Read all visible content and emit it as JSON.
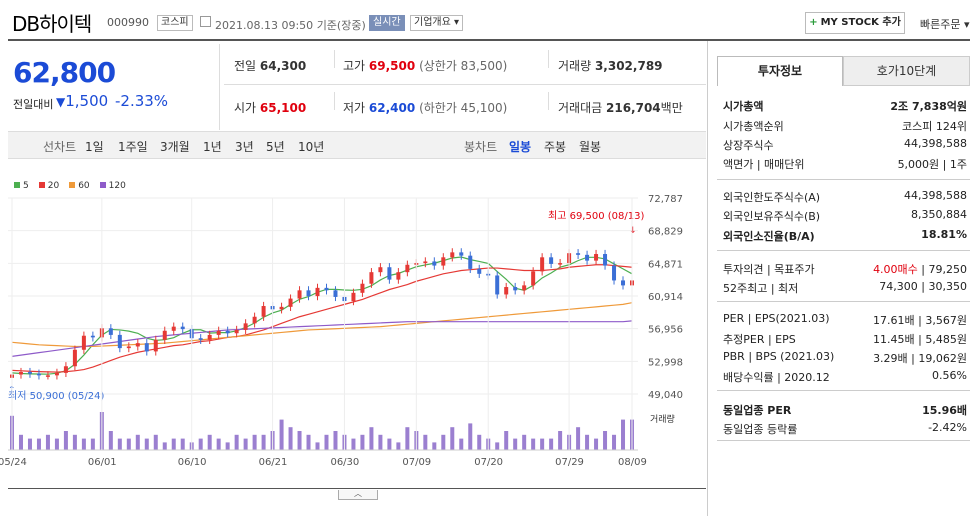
{
  "header": {
    "title": "DB하이텍",
    "code": "000990",
    "market": "코스피",
    "datetime": "2021.08.13 09:50",
    "basis": "기준(장중)",
    "realtime": "실시간",
    "company_info": "기업개요",
    "mystock": "MY STOCK 추가",
    "quick_order": "빠른주문"
  },
  "price": {
    "current": "62,800",
    "change_label": "전일대비",
    "change": "1,500",
    "change_pct": "-2.33%"
  },
  "quote": {
    "prev_label": "전일",
    "prev": "64,300",
    "high_label": "고가",
    "high": "69,500",
    "upper_limit": "(상한가 83,500)",
    "volume_label": "거래량",
    "volume": "3,302,789",
    "open_label": "시가",
    "open": "65,100",
    "low_label": "저가",
    "low": "62,400",
    "lower_limit": "(하한가 45,100)",
    "amount_label": "거래대금",
    "amount": "216,704",
    "amount_unit": "백만"
  },
  "chart_tabs": {
    "line_label": "선차트",
    "periods": [
      "1일",
      "1주일",
      "3개월",
      "1년",
      "3년",
      "5년",
      "10년"
    ],
    "candle_label": "봉차트",
    "candles": [
      "일봉",
      "주봉",
      "월봉"
    ],
    "selected_candle": "일봉"
  },
  "chart_data": {
    "type": "candlestick",
    "legend": [
      {
        "name": "5",
        "color": "#4caf50"
      },
      {
        "name": "20",
        "color": "#e53935"
      },
      {
        "name": "60",
        "color": "#ef9a3a"
      },
      {
        "name": "120",
        "color": "#8e5bc9"
      }
    ],
    "y_ticks": [
      "72,787",
      "68,829",
      "64,871",
      "60,914",
      "56,956",
      "52,998",
      "49,040"
    ],
    "ylim": [
      49040,
      72787
    ],
    "x_ticks": [
      "05/24",
      "06/01",
      "06/10",
      "06/21",
      "06/30",
      "07/09",
      "07/20",
      "07/29",
      "08/09"
    ],
    "max_annotation": "최고 69,500 (08/13)",
    "min_annotation": "최저 50,900 (05/24)",
    "volume_label": "거래량",
    "close": [
      51400,
      51700,
      51500,
      51300,
      51300,
      51600,
      52400,
      54400,
      56100,
      55900,
      57000,
      56200,
      54600,
      54800,
      55200,
      54200,
      55600,
      56700,
      57200,
      56900,
      55800,
      55600,
      56200,
      56700,
      56400,
      56800,
      57600,
      58400,
      59700,
      59300,
      59600,
      60600,
      61600,
      60900,
      61900,
      61600,
      60800,
      60300,
      61300,
      62400,
      63800,
      64400,
      62900,
      63800,
      64700,
      64900,
      65100,
      64600,
      65600,
      66200,
      65800,
      64200,
      63600,
      63400,
      61100,
      62000,
      61600,
      62200,
      63900,
      65600,
      64800,
      64900,
      66100,
      65900,
      65200,
      66000,
      64600,
      62800,
      62200,
      62800
    ],
    "ma5": [
      51600,
      51520,
      51480,
      51460,
      51440,
      51560,
      51860,
      52640,
      53760,
      55020,
      56180,
      56860,
      56800,
      56660,
      56400,
      55800,
      55540,
      55620,
      55860,
      56400,
      56820,
      56820,
      56420,
      56480,
      56480,
      56700,
      57100,
      57640,
      58340,
      58860,
      59200,
      59880,
      60520,
      60840,
      61360,
      61720,
      61720,
      61640,
      61600,
      61720,
      62160,
      62860,
      63400,
      63640,
      64060,
      64460,
      64680,
      64880,
      65200,
      65520,
      65640,
      65320,
      65100,
      64860,
      63880,
      62940,
      61860,
      61600,
      62200,
      63100,
      63700,
      64400,
      64700,
      65200,
      65600,
      65600,
      65400,
      64800,
      64200,
      63600
    ],
    "ma20": [
      51900,
      51850,
      51800,
      51750,
      51720,
      51700,
      51750,
      51850,
      52000,
      52300,
      52700,
      53100,
      53500,
      53800,
      54100,
      54300,
      54500,
      54700,
      54900,
      55000,
      55200,
      55400,
      55500,
      55700,
      55900,
      56000,
      56200,
      56500,
      56800,
      57200,
      57600,
      58000,
      58400,
      58700,
      59000,
      59300,
      59600,
      59900,
      60200,
      60500,
      60900,
      61300,
      61700,
      62000,
      62300,
      62700,
      63000,
      63300,
      63600,
      63800,
      64000,
      64100,
      64200,
      64300,
      64300,
      64200,
      64100,
      64000,
      64000,
      64000,
      64100,
      64200,
      64400,
      64500,
      64600,
      64700,
      64700,
      64600,
      64500,
      64400
    ],
    "ma60": [
      55300,
      55200,
      55100,
      55000,
      54950,
      54900,
      54850,
      54800,
      54800,
      54800,
      54850,
      54900,
      54950,
      55000,
      55050,
      55100,
      55150,
      55200,
      55300,
      55400,
      55500,
      55600,
      55700,
      55800,
      55900,
      56000,
      56100,
      56200,
      56300,
      56400,
      56500,
      56600,
      56700,
      56800,
      56850,
      56900,
      56950,
      57000,
      57050,
      57100,
      57150,
      57200,
      57300,
      57400,
      57500,
      57600,
      57700,
      57800,
      57900,
      58000,
      58100,
      58200,
      58300,
      58400,
      58500,
      58600,
      58700,
      58800,
      58900,
      59000,
      59100,
      59200,
      59300,
      59400,
      59500,
      59600,
      59700,
      59800,
      59900,
      60100
    ],
    "ma120": [
      53600,
      53750,
      53900,
      54050,
      54200,
      54350,
      54500,
      54650,
      54800,
      54950,
      55100,
      55250,
      55400,
      55550,
      55700,
      55850,
      56000,
      56100,
      56200,
      56300,
      56400,
      56500,
      56600,
      56700,
      56800,
      56850,
      56900,
      56950,
      57000,
      57050,
      57100,
      57150,
      57200,
      57250,
      57300,
      57350,
      57400,
      57450,
      57500,
      57550,
      57600,
      57650,
      57700,
      57750,
      57800,
      57800,
      57800,
      57800,
      57800,
      57800,
      57800,
      57800,
      57800,
      57800,
      57800,
      57800,
      57800,
      57800,
      57800,
      57800,
      57800,
      57800,
      57800,
      57800,
      57800,
      57800,
      57800,
      57800,
      57800,
      57900
    ],
    "volume": [
      9,
      4,
      3,
      3,
      4,
      3,
      5,
      4,
      3,
      3,
      10,
      5,
      3,
      3,
      4,
      3,
      4,
      2,
      3,
      3,
      2,
      3,
      4,
      3,
      2,
      4,
      3,
      4,
      4,
      5,
      8,
      6,
      5,
      4,
      2,
      4,
      5,
      4,
      3,
      4,
      6,
      4,
      3,
      2,
      6,
      5,
      4,
      2,
      4,
      6,
      3,
      7,
      4,
      3,
      2,
      5,
      3,
      4,
      3,
      3,
      3,
      5,
      4,
      6,
      4,
      3,
      5,
      4,
      8,
      8
    ]
  },
  "right_panel": {
    "tab_invest": "투자정보",
    "tab_quote10": "호가10단계",
    "mcap_label": "시가총액",
    "mcap": "2조 7,838억원",
    "mcap_rank_label": "시가총액순위",
    "mcap_rank": "코스피 124위",
    "shares_label": "상장주식수",
    "shares": "44,398,588",
    "par_label": "액면가 | 매매단위",
    "par": "5,000원 | 1주",
    "foreign_limit_label": "외국인한도주식수(A)",
    "foreign_limit": "44,398,588",
    "foreign_hold_label": "외국인보유주식수(B)",
    "foreign_hold": "8,350,884",
    "foreign_ratio_label": "외국인소진율(B/A)",
    "foreign_ratio": "18.81%",
    "opinion_label": "투자의견 | 목표주가",
    "opinion": "4.00매수",
    "target": "79,250",
    "w52_label": "52주최고 | 최저",
    "w52_high": "74,300",
    "w52_low": "30,350",
    "per_label": "PER | EPS(2021.03)",
    "per": "17.61배",
    "eps": "3,567원",
    "est_per_label": "추정PER | EPS",
    "est_per": "11.45배",
    "est_eps": "5,485원",
    "pbr_label": "PBR | BPS (2021.03)",
    "pbr": "3.29배",
    "bps": "19,062원",
    "div_label": "배당수익률 | 2020.12",
    "div": "0.56%",
    "ind_per_label": "동일업종 PER",
    "ind_per": "15.96배",
    "ind_rate_label": "동일업종 등락률",
    "ind_rate": "-2.42%"
  }
}
